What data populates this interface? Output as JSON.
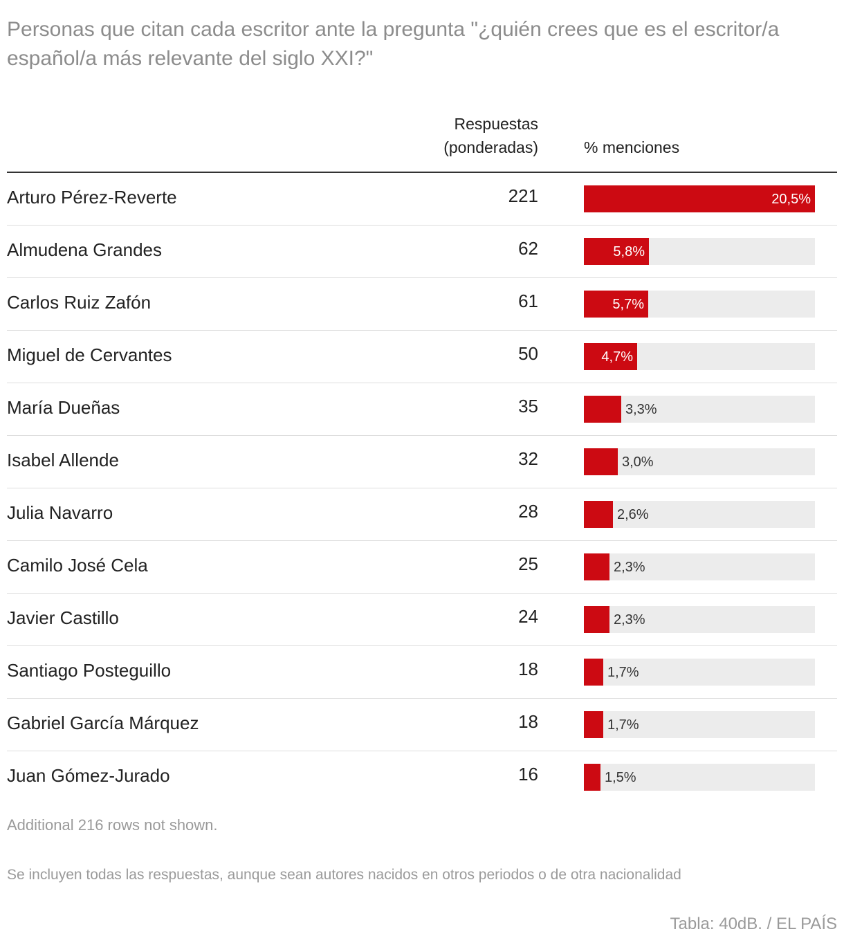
{
  "title": "Personas que citan cada escritor ante la pregunta \"¿quién crees que es el escritor/a español/a más relevante del siglo XXI?\"",
  "header": {
    "responses_line1": "Respuestas",
    "responses_line2": "(ponderadas)",
    "pct_label": "% menciones"
  },
  "colors": {
    "bar": "#cc0a12",
    "track": "#ececec",
    "title": "#8c8c8c"
  },
  "chart_data": {
    "type": "table",
    "columns": [
      "",
      "Respuestas (ponderadas)",
      "% menciones"
    ],
    "max_pct": 20.5,
    "rows": [
      {
        "name": "Arturo Pérez-Reverte",
        "count": "221",
        "pct": 20.5,
        "pct_label": "20,5%"
      },
      {
        "name": "Almudena Grandes",
        "count": "62",
        "pct": 5.8,
        "pct_label": "5,8%"
      },
      {
        "name": "Carlos Ruiz Zafón",
        "count": "61",
        "pct": 5.7,
        "pct_label": "5,7%"
      },
      {
        "name": "Miguel de Cervantes",
        "count": "50",
        "pct": 4.7,
        "pct_label": "4,7%"
      },
      {
        "name": "María Dueñas",
        "count": "35",
        "pct": 3.3,
        "pct_label": "3,3%"
      },
      {
        "name": "Isabel Allende",
        "count": "32",
        "pct": 3.0,
        "pct_label": "3,0%"
      },
      {
        "name": "Julia Navarro",
        "count": "28",
        "pct": 2.6,
        "pct_label": "2,6%"
      },
      {
        "name": "Camilo José Cela",
        "count": "25",
        "pct": 2.3,
        "pct_label": "2,3%"
      },
      {
        "name": "Javier Castillo",
        "count": "24",
        "pct": 2.3,
        "pct_label": "2,3%"
      },
      {
        "name": "Santiago Posteguillo",
        "count": "18",
        "pct": 1.7,
        "pct_label": "1,7%"
      },
      {
        "name": "Gabriel García Márquez",
        "count": "18",
        "pct": 1.7,
        "pct_label": "1,7%"
      },
      {
        "name": "Juan Gómez-Jurado",
        "count": "16",
        "pct": 1.5,
        "pct_label": "1,5%"
      }
    ]
  },
  "footer": {
    "rows_note": "Additional 216 rows not shown.",
    "note": "Se incluyen todas las respuestas, aunque sean autores nacidos en otros periodos o de otra nacionalidad",
    "source": "Tabla: 40dB. / EL PAÍS"
  }
}
